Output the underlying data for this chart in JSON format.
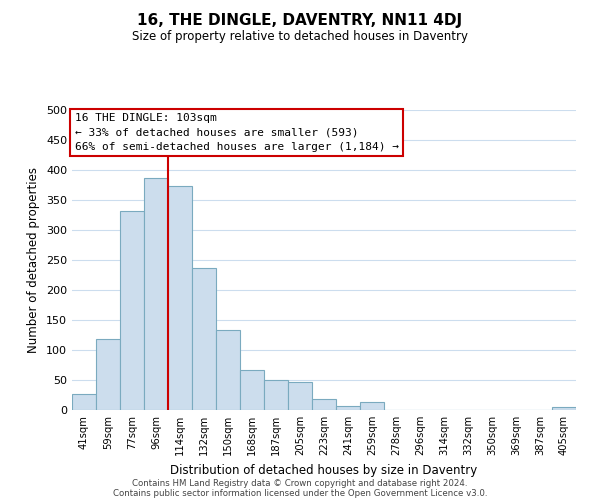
{
  "title": "16, THE DINGLE, DAVENTRY, NN11 4DJ",
  "subtitle": "Size of property relative to detached houses in Daventry",
  "xlabel": "Distribution of detached houses by size in Daventry",
  "ylabel": "Number of detached properties",
  "bar_labels": [
    "41sqm",
    "59sqm",
    "77sqm",
    "96sqm",
    "114sqm",
    "132sqm",
    "150sqm",
    "168sqm",
    "187sqm",
    "205sqm",
    "223sqm",
    "241sqm",
    "259sqm",
    "278sqm",
    "296sqm",
    "314sqm",
    "332sqm",
    "350sqm",
    "369sqm",
    "387sqm",
    "405sqm"
  ],
  "bar_values": [
    27,
    118,
    331,
    387,
    373,
    237,
    133,
    67,
    50,
    46,
    18,
    6,
    13,
    0,
    0,
    0,
    0,
    0,
    0,
    0,
    5
  ],
  "bar_color": "#ccdded",
  "bar_edge_color": "#7aaabf",
  "ylim": [
    0,
    500
  ],
  "yticks": [
    0,
    50,
    100,
    150,
    200,
    250,
    300,
    350,
    400,
    450,
    500
  ],
  "vline_x_index": 3.5,
  "vline_color": "#cc0000",
  "annotation_line1": "16 THE DINGLE: 103sqm",
  "annotation_line2": "← 33% of detached houses are smaller (593)",
  "annotation_line3": "66% of semi-detached houses are larger (1,184) →",
  "annotation_box_color": "#ffffff",
  "annotation_edge_color": "#cc0000",
  "footer_line1": "Contains HM Land Registry data © Crown copyright and database right 2024.",
  "footer_line2": "Contains public sector information licensed under the Open Government Licence v3.0.",
  "background_color": "#ffffff",
  "grid_color": "#ccddee"
}
